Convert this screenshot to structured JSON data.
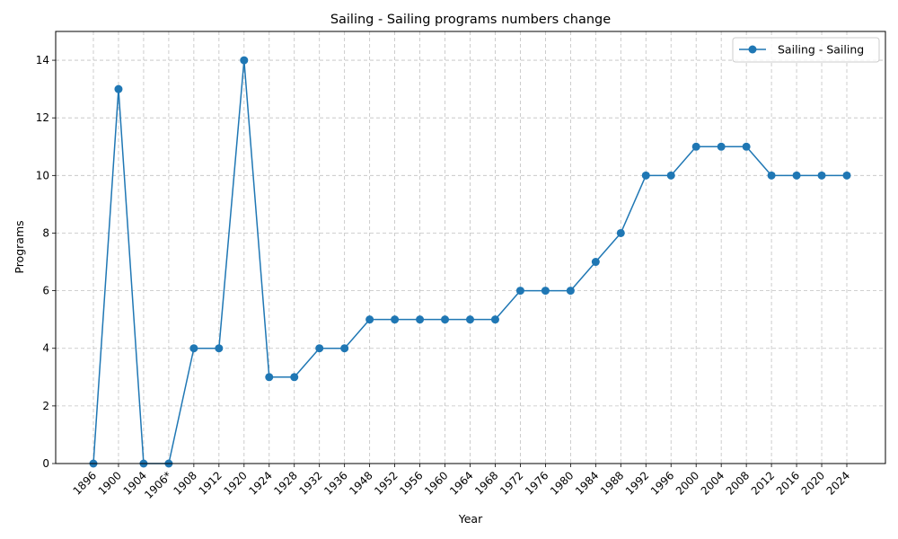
{
  "chart_data": {
    "type": "line",
    "title": "Sailing - Sailing programs numbers change",
    "xlabel": "Year",
    "ylabel": "Programs",
    "categories": [
      "1896",
      "1900",
      "1904",
      "1906*",
      "1908",
      "1912",
      "1920",
      "1924",
      "1928",
      "1932",
      "1936",
      "1948",
      "1952",
      "1956",
      "1960",
      "1964",
      "1968",
      "1972",
      "1976",
      "1980",
      "1984",
      "1988",
      "1992",
      "1996",
      "2000",
      "2004",
      "2008",
      "2012",
      "2016",
      "2020",
      "2024"
    ],
    "series": [
      {
        "name": "Sailing - Sailing",
        "values": [
          0,
          13,
          0,
          0,
          4,
          4,
          14,
          3,
          3,
          4,
          4,
          5,
          5,
          5,
          5,
          5,
          5,
          6,
          6,
          6,
          7,
          8,
          10,
          10,
          11,
          11,
          11,
          10,
          10,
          10,
          10
        ],
        "color": "#1f77b4"
      }
    ],
    "ylim": [
      0,
      15
    ],
    "yticks": [
      0,
      2,
      4,
      6,
      8,
      10,
      12,
      14
    ],
    "grid": true,
    "legend_position": "upper right"
  }
}
